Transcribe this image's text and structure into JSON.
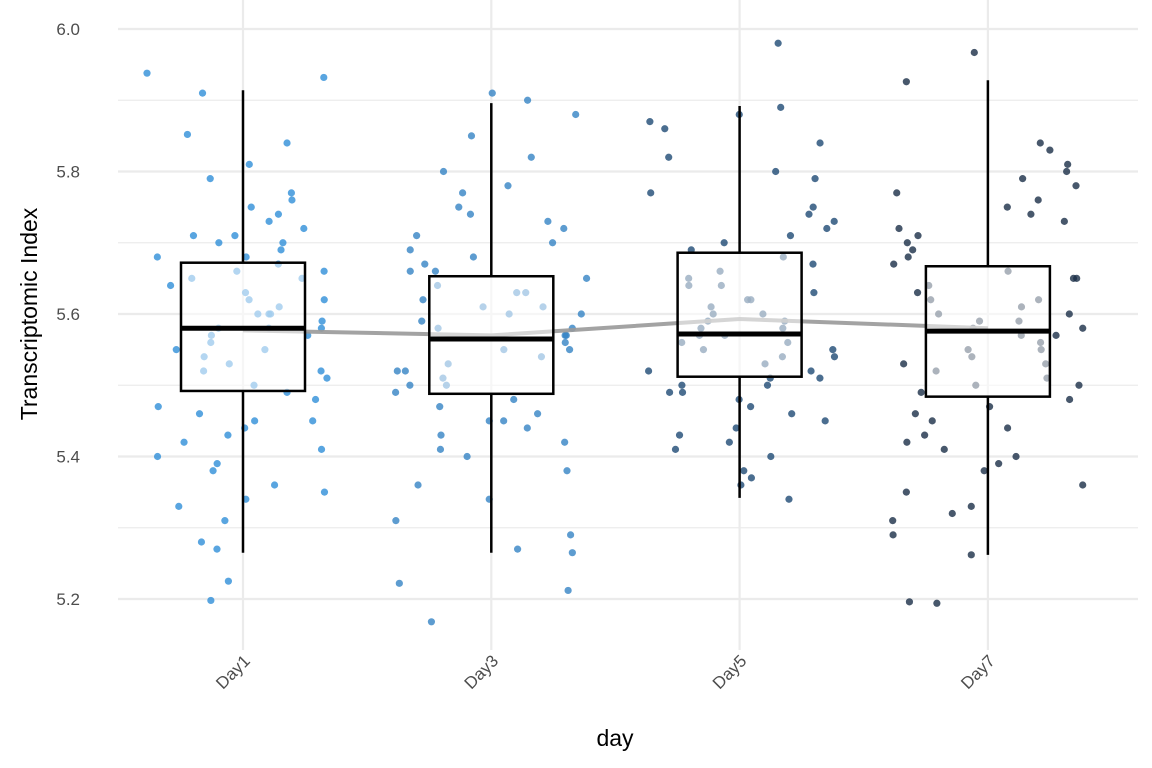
{
  "chart_data": {
    "type": "box",
    "title": "",
    "xlabel": "day",
    "ylabel": "Transcriptomic Index",
    "ylim": [
      5.128,
      6.04
    ],
    "yticks": [
      "5.2",
      "5.4",
      "5.6",
      "5.8",
      "6.0"
    ],
    "categories": [
      "Day1",
      "Day3",
      "Day5",
      "Day7"
    ],
    "colors": [
      "#2f8fd8",
      "#3583c4",
      "#1e4a74",
      "#1a2e47"
    ],
    "boxes": [
      {
        "category": "Day1",
        "whisker_low": 5.265,
        "q1": 5.492,
        "median": 5.58,
        "q3": 5.672,
        "whisker_high": 5.914
      },
      {
        "category": "Day3",
        "whisker_low": 5.265,
        "q1": 5.488,
        "median": 5.565,
        "q3": 5.653,
        "whisker_high": 5.896
      },
      {
        "category": "Day5",
        "whisker_low": 5.342,
        "q1": 5.512,
        "median": 5.572,
        "q3": 5.686,
        "whisker_high": 5.892
      },
      {
        "category": "Day7",
        "whisker_low": 5.262,
        "q1": 5.484,
        "median": 5.576,
        "q3": 5.667,
        "whisker_high": 5.928
      }
    ],
    "mean_line": {
      "color": "#999999",
      "values": [
        5.577,
        5.57,
        5.593,
        5.58
      ]
    },
    "points": [
      [
        5.938,
        5.932,
        5.91,
        5.852,
        5.84,
        5.81,
        5.79,
        5.77,
        5.76,
        5.75,
        5.74,
        5.73,
        5.72,
        5.71,
        5.7,
        5.7,
        5.69,
        5.68,
        5.67,
        5.66,
        5.66,
        5.65,
        5.64,
        5.63,
        5.62,
        5.61,
        5.6,
        5.6,
        5.59,
        5.58,
        5.58,
        5.57,
        5.57,
        5.56,
        5.55,
        5.54,
        5.53,
        5.52,
        5.51,
        5.5,
        5.49,
        5.48,
        5.47,
        5.46,
        5.45,
        5.44,
        5.43,
        5.42,
        5.41,
        5.4,
        5.39,
        5.38,
        5.36,
        5.35,
        5.34,
        5.33,
        5.31,
        5.28,
        5.27,
        5.225,
        5.198,
        5.62,
        5.55,
        5.65,
        5.52,
        5.71,
        5.45,
        5.6,
        5.58,
        5.68
      ],
      [
        5.91,
        5.9,
        5.88,
        5.85,
        5.82,
        5.8,
        5.78,
        5.77,
        5.75,
        5.74,
        5.73,
        5.72,
        5.71,
        5.7,
        5.69,
        5.68,
        5.67,
        5.66,
        5.65,
        5.64,
        5.63,
        5.62,
        5.61,
        5.6,
        5.59,
        5.58,
        5.57,
        5.57,
        5.56,
        5.55,
        5.54,
        5.53,
        5.52,
        5.51,
        5.5,
        5.49,
        5.48,
        5.47,
        5.46,
        5.45,
        5.44,
        5.43,
        5.42,
        5.41,
        5.4,
        5.38,
        5.36,
        5.34,
        5.31,
        5.29,
        5.27,
        5.265,
        5.222,
        5.212,
        5.168,
        5.6,
        5.55,
        5.63,
        5.5,
        5.58,
        5.66,
        5.45,
        5.52,
        5.61
      ],
      [
        5.98,
        5.89,
        5.88,
        5.87,
        5.86,
        5.84,
        5.82,
        5.8,
        5.79,
        5.77,
        5.75,
        5.74,
        5.73,
        5.72,
        5.71,
        5.7,
        5.69,
        5.68,
        5.67,
        5.66,
        5.65,
        5.64,
        5.63,
        5.62,
        5.61,
        5.6,
        5.59,
        5.59,
        5.58,
        5.57,
        5.56,
        5.55,
        5.55,
        5.54,
        5.53,
        5.52,
        5.51,
        5.5,
        5.5,
        5.49,
        5.48,
        5.47,
        5.46,
        5.45,
        5.44,
        5.43,
        5.42,
        5.41,
        5.4,
        5.38,
        5.37,
        5.36,
        5.34,
        5.6,
        5.56,
        5.52,
        5.58,
        5.62,
        5.49,
        5.54,
        5.57,
        5.64,
        5.51
      ],
      [
        5.967,
        5.926,
        5.84,
        5.83,
        5.81,
        5.8,
        5.79,
        5.78,
        5.77,
        5.76,
        5.75,
        5.74,
        5.73,
        5.72,
        5.71,
        5.7,
        5.69,
        5.68,
        5.67,
        5.66,
        5.65,
        5.64,
        5.63,
        5.62,
        5.61,
        5.6,
        5.59,
        5.58,
        5.58,
        5.57,
        5.56,
        5.55,
        5.54,
        5.53,
        5.52,
        5.51,
        5.5,
        5.49,
        5.48,
        5.47,
        5.46,
        5.45,
        5.44,
        5.43,
        5.42,
        5.41,
        5.4,
        5.39,
        5.38,
        5.36,
        5.35,
        5.33,
        5.32,
        5.31,
        5.29,
        5.262,
        5.196,
        5.194,
        5.6,
        5.55,
        5.62,
        5.5,
        5.57,
        5.65,
        5.53,
        5.59
      ]
    ]
  }
}
